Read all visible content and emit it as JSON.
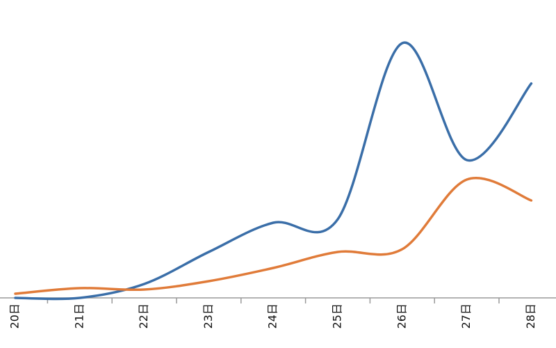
{
  "chart_data": {
    "type": "line",
    "categories": [
      "20日",
      "21日",
      "22日",
      "23日",
      "24日",
      "25日",
      "26日",
      "27日",
      "28日"
    ],
    "series": [
      {
        "color": "#3a6ea8",
        "values": [
          0,
          0,
          20,
          66,
          108,
          113,
          366,
          198,
          308
        ]
      },
      {
        "color": "#e07b39",
        "values": [
          6,
          14,
          12,
          24,
          43,
          66,
          70,
          170,
          140
        ]
      }
    ]
  }
}
